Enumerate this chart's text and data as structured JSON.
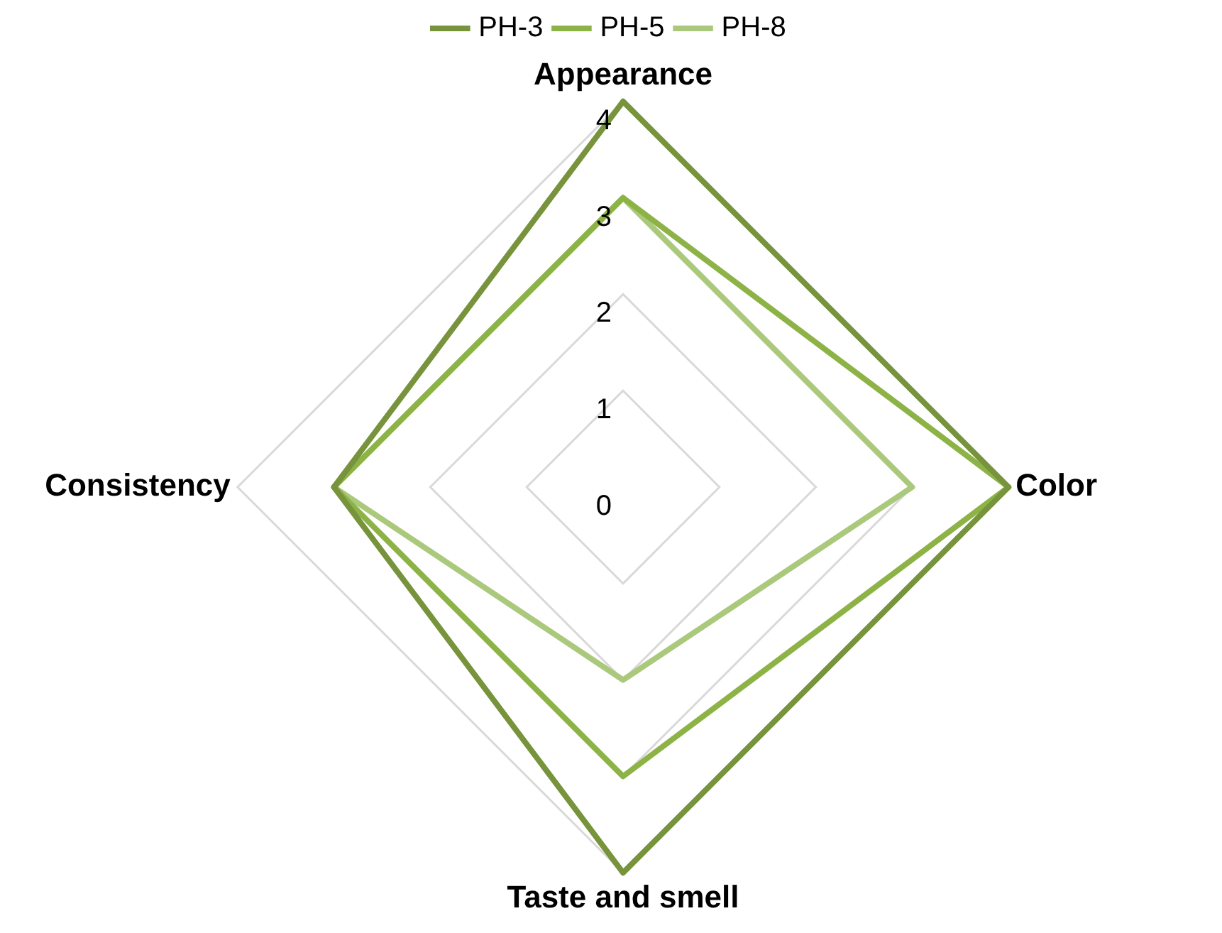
{
  "chart_data": {
    "type": "radar",
    "categories": [
      "Appearance",
      "Color",
      "Taste and smell",
      "Consistency"
    ],
    "series": [
      {
        "name": "PH-3",
        "color": "#77933c",
        "values": [
          4,
          4,
          4,
          3
        ]
      },
      {
        "name": "PH-5",
        "color": "#8db347",
        "values": [
          3,
          4,
          3,
          3
        ]
      },
      {
        "name": "PH-8",
        "color": "#abc97c",
        "values": [
          3,
          3,
          2,
          3
        ]
      }
    ],
    "ylim": [
      0,
      4
    ],
    "yticks": [
      0,
      1,
      2,
      3,
      4
    ],
    "grid": true,
    "legend": "top",
    "marker": "none"
  }
}
